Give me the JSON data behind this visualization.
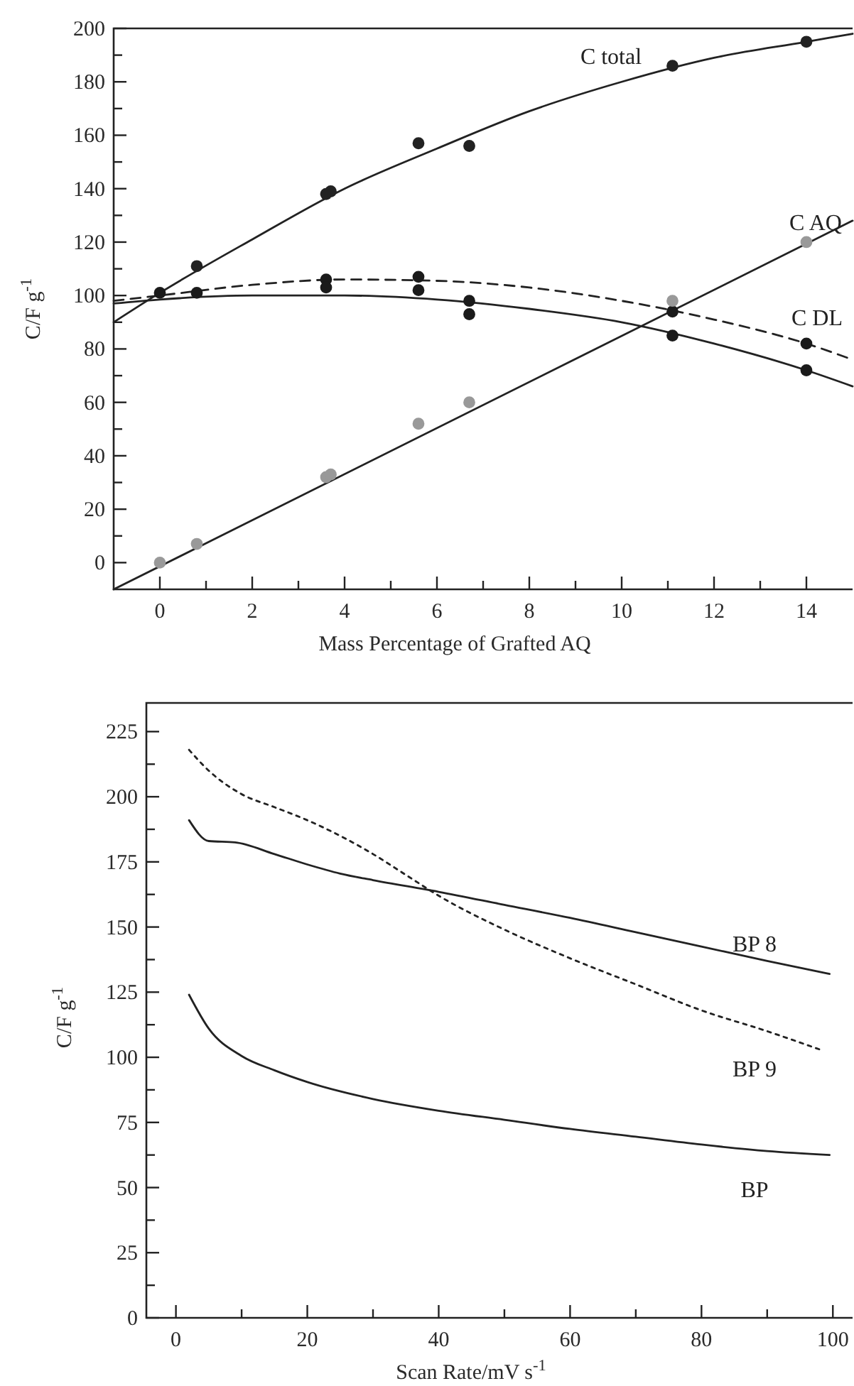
{
  "chart_data": [
    {
      "type": "line",
      "xlabel": "Mass Percentage of Grafted AQ",
      "ylabel": "C/F g$^{-1}$",
      "xlim": [
        -1,
        15
      ],
      "ylim": [
        -10,
        200
      ],
      "xticks": [
        0,
        {
          "value": 1,
          "label": null
        },
        2,
        {
          "value": 3,
          "label": null
        },
        4,
        {
          "value": 5,
          "label": null
        },
        6,
        {
          "value": 7,
          "label": null
        },
        8,
        {
          "value": 9,
          "label": null
        },
        10,
        {
          "value": 11,
          "label": null
        },
        12,
        {
          "value": 13,
          "label": null
        },
        14
      ],
      "yticks": [
        0,
        {
          "value": 10,
          "label": null
        },
        20,
        {
          "value": 30,
          "label": null
        },
        40,
        {
          "value": 50,
          "label": null
        },
        60,
        {
          "value": 70,
          "label": null
        },
        80,
        {
          "value": 90,
          "label": null
        },
        100,
        {
          "value": 110,
          "label": null
        },
        120,
        {
          "value": 130,
          "label": null
        },
        140,
        {
          "value": 150,
          "label": null
        },
        160,
        {
          "value": 170,
          "label": null
        },
        180,
        {
          "value": 190,
          "label": null
        },
        200
      ],
      "grid": false,
      "legend": false,
      "series": [
        {
          "name": "C total",
          "color": "#222222",
          "line_style": "solid",
          "marker": "none",
          "x": [
            -1,
            0,
            2,
            4,
            6,
            8,
            10,
            12,
            14,
            15
          ],
          "values": [
            90,
            101,
            121,
            140,
            155,
            169,
            180,
            189,
            195,
            198
          ]
        },
        {
          "name": "C DL",
          "color": "#222222",
          "line_style": "dashed",
          "marker": "none",
          "x": [
            -1,
            0,
            2,
            4,
            6,
            8,
            10,
            12,
            14,
            15
          ],
          "values": [
            98,
            100,
            104,
            106,
            105.5,
            103,
            98,
            91,
            82,
            76
          ]
        },
        {
          "color": "#222222",
          "line_style": "solid",
          "marker": "none",
          "x": [
            -1,
            0,
            2,
            4,
            6,
            8,
            10,
            12,
            14,
            15
          ],
          "values": [
            97,
            98.5,
            100,
            100,
            98.5,
            95,
            90,
            82,
            72,
            66
          ]
        },
        {
          "name": "C AQ",
          "color": "#222222",
          "line_style": "solid",
          "marker": "none",
          "x": [
            -1,
            15
          ],
          "values": [
            -10,
            128
          ]
        },
        {
          "type": "scatter",
          "color": "#222222",
          "marker": "circle",
          "x": [
            0.8,
            3.6,
            3.7,
            5.6,
            6.7,
            11.1,
            14
          ],
          "values": [
            111,
            138,
            139,
            157,
            156,
            186,
            195
          ]
        },
        {
          "type": "scatter",
          "color": "#1a1a1a",
          "marker": "circle",
          "x": [
            0,
            0.8,
            3.6,
            3.6,
            5.6,
            5.6,
            6.7,
            6.7,
            11.1,
            11.1,
            14,
            14
          ],
          "values": [
            101,
            101,
            106,
            103,
            107,
            102,
            98,
            93,
            94,
            85,
            82,
            72
          ]
        },
        {
          "type": "scatter",
          "color": "#999999",
          "marker": "circle",
          "x": [
            0,
            0.8,
            3.6,
            3.7,
            5.6,
            6.7,
            11.1,
            14
          ],
          "values": [
            0,
            7,
            32,
            33,
            52,
            60,
            98,
            120
          ]
        }
      ]
    },
    {
      "type": "line",
      "xlabel": "Scan Rate/mV s$^{-1}$",
      "ylabel": "C/F g$^{-1}$",
      "xlim": [
        -4.5,
        103
      ],
      "ylim": [
        0,
        236
      ],
      "xticks": [
        0,
        {
          "value": 10,
          "label": null
        },
        20,
        {
          "value": 30,
          "label": null
        },
        40,
        {
          "value": 50,
          "label": null
        },
        60,
        {
          "value": 70,
          "label": null
        },
        80,
        {
          "value": 90,
          "label": null
        },
        100
      ],
      "yticks": [
        0,
        {
          "value": 12.5,
          "label": null
        },
        25,
        {
          "value": 37.5,
          "label": null
        },
        50,
        {
          "value": 62.5,
          "label": null
        },
        75,
        {
          "value": 87.5,
          "label": null
        },
        100,
        {
          "value": 112.5,
          "label": null
        },
        125,
        {
          "value": 137.5,
          "label": null
        },
        150,
        {
          "value": 162.5,
          "label": null
        },
        175,
        {
          "value": 187.5,
          "label": null
        },
        200,
        {
          "value": 212.5,
          "label": null
        },
        225
      ],
      "grid": false,
      "legend": false,
      "series": [
        {
          "name": "BP 8",
          "color": "#222222",
          "line_style": "solid",
          "marker": "none",
          "x": [
            2,
            5,
            9,
            15,
            20,
            25,
            30,
            40,
            50,
            60,
            70,
            80,
            90,
            99.5
          ],
          "values": [
            191,
            183,
            182.5,
            178,
            174,
            170.5,
            168,
            163.5,
            158.5,
            153.5,
            148,
            142.5,
            137,
            132
          ]
        },
        {
          "name": "BP 9",
          "color": "#222222",
          "line_style": "dotted",
          "marker": "none",
          "x": [
            2,
            5,
            10,
            15,
            20,
            25,
            30,
            35,
            40,
            50,
            60,
            70,
            80,
            90,
            98
          ],
          "values": [
            218,
            210,
            201,
            196,
            191,
            185,
            178,
            170,
            162,
            149,
            138,
            128,
            118,
            110,
            103
          ]
        },
        {
          "name": "BP",
          "color": "#222222",
          "line_style": "solid",
          "marker": "none",
          "x": [
            2,
            5,
            10,
            15,
            20,
            30,
            40,
            50,
            60,
            70,
            80,
            90,
            99.5
          ],
          "values": [
            124,
            111,
            100.5,
            95,
            90.5,
            84,
            79.5,
            76,
            72.5,
            69.5,
            66.5,
            64,
            62.5
          ]
        }
      ]
    }
  ]
}
